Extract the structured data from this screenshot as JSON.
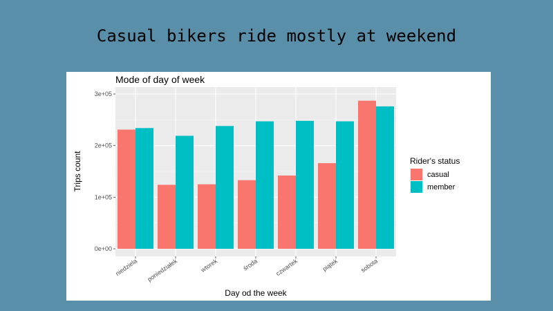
{
  "slide": {
    "title": "Casual bikers ride mostly at weekend"
  },
  "chart_data": {
    "type": "bar",
    "title": "Mode of day of week",
    "xlabel": "Day od the week",
    "ylabel": "Trips count",
    "categories": [
      "niedziela",
      "poniedziałek",
      "wtorek",
      "środa",
      "czwartek",
      "piątek",
      "sobota"
    ],
    "series": [
      {
        "name": "casual",
        "color": "#f8766d",
        "values": [
          231000,
          124000,
          125000,
          133000,
          142000,
          166000,
          287000
        ]
      },
      {
        "name": "member",
        "color": "#00bfc4",
        "values": [
          234000,
          219000,
          238000,
          247000,
          248000,
          247000,
          276000
        ]
      }
    ],
    "ylim": [
      0,
      300000
    ],
    "yticks": [
      0,
      100000,
      200000,
      300000
    ],
    "ytick_labels": [
      "0e+00",
      "1e+05",
      "2e+05",
      "3e+05"
    ],
    "grid": true,
    "legend": {
      "title": "Rider's status",
      "placement": "right"
    }
  }
}
